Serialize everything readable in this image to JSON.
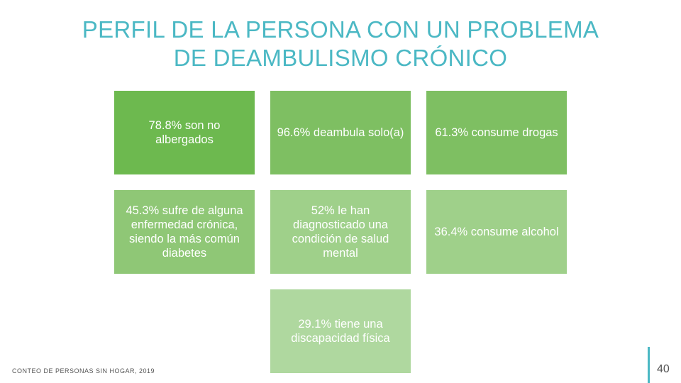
{
  "title_line1": "PERFIL DE LA PERSONA CON UN PROBLEMA",
  "title_line2": "DE DEAMBULISMO CRÓNICO",
  "tiles": [
    {
      "text": "78.8% son no albergados",
      "color": "#6db94f"
    },
    {
      "text": "96.6% deambula solo(a)",
      "color": "#7ebf62"
    },
    {
      "text": "61.3% consume drogas",
      "color": "#7ebf62"
    },
    {
      "text": "45.3% sufre de alguna enfermedad crónica, siendo la más común diabetes",
      "color": "#8fc776"
    },
    {
      "text": "52% le han diagnosticado una condición de salud mental",
      "color": "#9fd08a"
    },
    {
      "text": "36.4% consume alcohol",
      "color": "#9fd08a"
    },
    {
      "text": "29.1% tiene una discapacidad física",
      "color": "#afd89f"
    }
  ],
  "footer": "CONTEO DE PERSONAS SIN HOGAR, 2019",
  "page_number": "40"
}
